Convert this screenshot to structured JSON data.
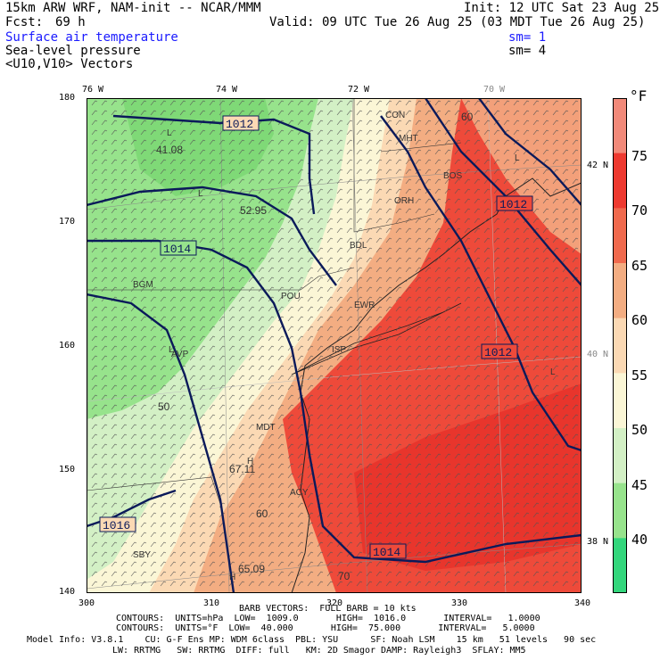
{
  "header": {
    "model_title": "15km ARW WRF, NAM-init -- NCAR/MMM",
    "init": "Init: 12 UTC Sat 23 Aug 25",
    "fcst_label": "Fcst:",
    "fcst_value": "69 h",
    "valid": "Valid: 09 UTC Tue 26 Aug 25 (03 MDT Tue 26 Aug 25)",
    "field1": "Surface air temperature",
    "field2": "Sea-level pressure",
    "field3": "<U10,V10> Vectors",
    "sm1": "sm= 1",
    "sm2": "sm= 4"
  },
  "axes": {
    "top_lon": [
      "76 W",
      "74 W",
      "72 W",
      "70 W"
    ],
    "x_ticks": [
      "300",
      "310",
      "320",
      "330",
      "340"
    ],
    "y_ticks": [
      "180",
      "170",
      "160",
      "150",
      "140"
    ],
    "right_lat": [
      "42 N",
      "40 N",
      "38 N"
    ]
  },
  "colorbar": {
    "unit": "°F",
    "labels": [
      "75",
      "70",
      "65",
      "60",
      "55",
      "50",
      "45",
      "40"
    ],
    "colors": [
      "#f28a7a",
      "#ee3a30",
      "#f06a4e",
      "#f3ad82",
      "#fbd9b4",
      "#fbf6d6",
      "#d3f0c5",
      "#97e38c",
      "#33d67c"
    ]
  },
  "map_labels": {
    "isobars": [
      "1012",
      "1014",
      "1012",
      "1014",
      "1016",
      "1012"
    ],
    "temps": [
      "41.08",
      "52.95",
      "67.11",
      "65.09",
      "50",
      "60",
      "70",
      "60"
    ],
    "stations": [
      "CON",
      "MHT",
      "BOS",
      "ORH",
      "BDL",
      "POU",
      "BGM",
      "AVP",
      "ISP",
      "MDT",
      "ACY",
      "SBY",
      "EWR",
      "L",
      "L",
      "H",
      "H",
      "L",
      "L",
      "L"
    ]
  },
  "footer": {
    "barb": "BARB VECTORS:  FULL BARB = 10 kts",
    "contours1": "CONTOURS:  UNITS=hPa  LOW=  1009.0       HIGH=  1016.0       INTERVAL=   1.0000",
    "contours2": "CONTOURS:  UNITS=°F  LOW=  40.000       HIGH=  75.000       INTERVAL=   5.0000",
    "model1": "Model Info: V3.8.1    CU: G-F Ens MP: WDM 6class  PBL: YSU      SF: Noah LSM    15 km   51 levels   90 sec",
    "model2": "LW: RRTMG   SW: RRTMG  DIFF: full   KM: 2D Smagor DAMP: Rayleigh3  SFLAY: MM5"
  }
}
